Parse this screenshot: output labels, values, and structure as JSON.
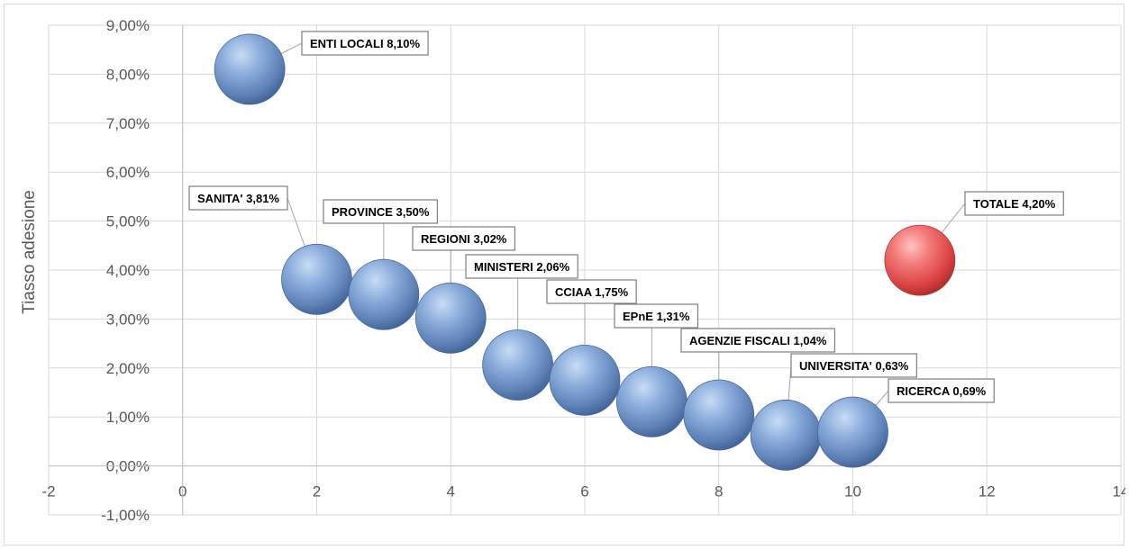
{
  "chart_data": {
    "type": "scatter",
    "subtype": "bubble",
    "title": "",
    "xlabel": "",
    "ylabel": "Tiasso adesione",
    "xlim": [
      -2,
      14
    ],
    "ylim": [
      -0.01,
      0.09
    ],
    "x_ticks": [
      "-2",
      "0",
      "2",
      "4",
      "6",
      "8",
      "10",
      "12",
      "14"
    ],
    "y_ticks": [
      "-1,00%",
      "0,00%",
      "1,00%",
      "2,00%",
      "3,00%",
      "4,00%",
      "5,00%",
      "6,00%",
      "7,00%",
      "8,00%",
      "9,00%"
    ],
    "grid": true,
    "legend": "none",
    "colors": {
      "default_bubble": "#6f93c8",
      "highlight_bubble": "#ec5a5a",
      "gridline": "#d9d9d9"
    },
    "points": [
      {
        "x": 1,
        "y": 0.081,
        "label": "ENTI LOCALI 8,10%"
      },
      {
        "x": 2,
        "y": 0.0381,
        "label": "SANITA' 3,81%"
      },
      {
        "x": 3,
        "y": 0.035,
        "label": "PROVINCE 3,50%"
      },
      {
        "x": 4,
        "y": 0.0302,
        "label": "REGIONI 3,02%"
      },
      {
        "x": 5,
        "y": 0.0206,
        "label": "MINISTERI 2,06%"
      },
      {
        "x": 6,
        "y": 0.0175,
        "label": "CCIAA 1,75%"
      },
      {
        "x": 7,
        "y": 0.0131,
        "label": "EPnE 1,31%"
      },
      {
        "x": 8,
        "y": 0.0104,
        "label": "AGENZIE FISCALI 1,04%"
      },
      {
        "x": 9,
        "y": 0.0063,
        "label": "UNIVERSITA' 0,63%"
      },
      {
        "x": 10,
        "y": 0.0069,
        "label": "RICERCA 0,69%"
      },
      {
        "x": 11,
        "y": 0.042,
        "label": "TOTALE 4,20%",
        "highlight": true
      }
    ]
  }
}
